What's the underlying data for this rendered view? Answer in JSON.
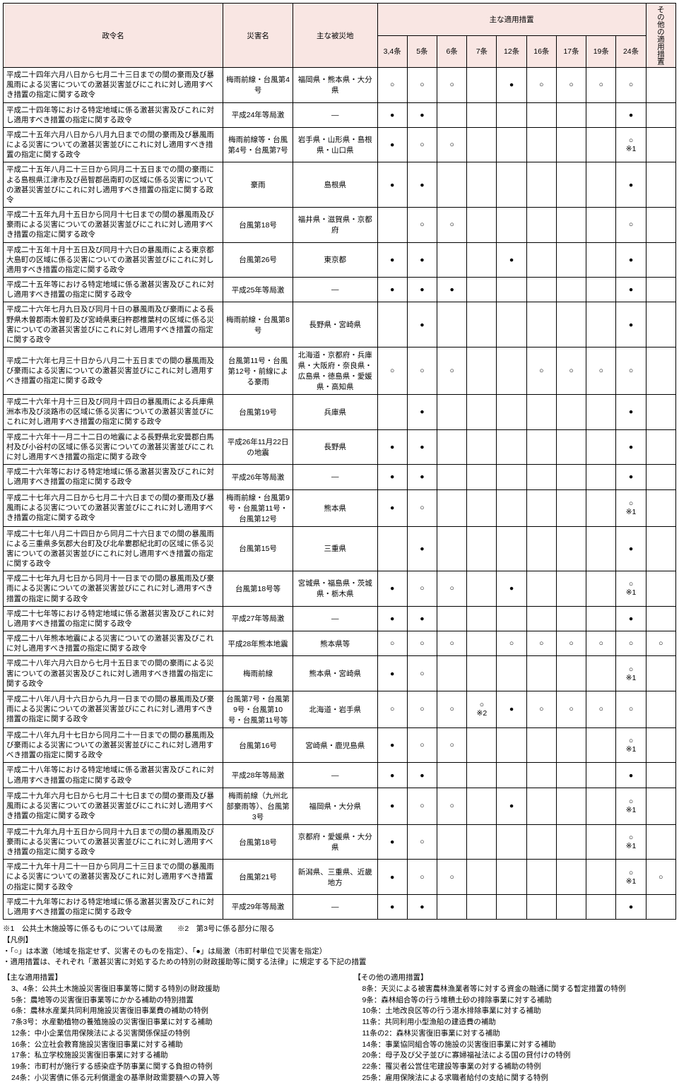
{
  "headers": {
    "col0": "政令名",
    "col1": "災害名",
    "col2": "主な被災地",
    "group": "主な適用措置",
    "other": "その他の適用措置",
    "articles": [
      "3,4条",
      "5条",
      "6条",
      "7条",
      "12条",
      "16条",
      "17条",
      "19条",
      "24条"
    ]
  },
  "rows": [
    {
      "name": "平成二十四年六月八日から七月二十三日までの間の豪雨及び暴風雨による災害についての激甚災害並びにこれに対し適用すべき措置の指定に関する政令",
      "dis": "梅雨前線・台風第4号",
      "area": "福岡県・熊本県・大分県",
      "m": [
        "○",
        "○",
        "○",
        "",
        "●",
        "○",
        "○",
        "○",
        "○"
      ],
      "o": ""
    },
    {
      "name": "平成二十四年等における特定地域に係る激甚災害及びこれに対し適用すべき措置の指定に関する政令",
      "dis": "平成24年等局激",
      "area": "―",
      "m": [
        "●",
        "●",
        "",
        "",
        "",
        "",
        "",
        "",
        "●"
      ],
      "o": ""
    },
    {
      "name": "平成二十五年六月八日から八月九日までの間の豪雨及び暴風雨による災害についての激甚災害並びにこれに対し適用すべき措置の指定に関する政令",
      "dis": "梅雨前線等・台風第4号・台風第7号",
      "area": "岩手県・山形県・島根県・山口県",
      "m": [
        "●",
        "○",
        "○",
        "",
        "",
        "",
        "",
        "",
        "○※1"
      ],
      "o": ""
    },
    {
      "name": "平成二十五年八月二十三日から同月二十五日までの間の豪雨による島根県江津市及び邑智郡邑南町の区域に係る災害についての激甚災害並びにこれに対し適用すべき措置の指定に関する政令",
      "dis": "豪雨",
      "area": "島根県",
      "m": [
        "●",
        "●",
        "",
        "",
        "",
        "",
        "",
        "",
        "●"
      ],
      "o": ""
    },
    {
      "name": "平成二十五年九月十五日から同月十七日までの間の暴風雨及び豪雨による災害についての激甚災害並びにこれに対し適用すべき措置の指定に関する政令",
      "dis": "台風第18号",
      "area": "福井県・滋賀県・京都府",
      "m": [
        "",
        "○",
        "○",
        "",
        "",
        "",
        "",
        "",
        "○"
      ],
      "o": ""
    },
    {
      "name": "平成二十五年十月十五日及び同月十六日の暴風雨による東京都大島町の区域に係る災害についての激甚災害並びにこれに対し適用すべき措置の指定に関する政令",
      "dis": "台風第26号",
      "area": "東京都",
      "m": [
        "●",
        "●",
        "",
        "",
        "●",
        "",
        "",
        "",
        "●"
      ],
      "o": ""
    },
    {
      "name": "平成二十五年等における特定地域に係る激甚災害及びこれに対し適用すべき措置の指定に関する政令",
      "dis": "平成25年等局激",
      "area": "―",
      "m": [
        "●",
        "●",
        "●",
        "",
        "",
        "",
        "",
        "",
        "●"
      ],
      "o": ""
    },
    {
      "name": "平成二十六年七月九日及び同月十日の暴風雨及び豪雨による長野県木曽郡南木曽町及び宮崎県東臼杵郡椎葉村の区域に係る災害についての激甚災害並びにこれに対し適用すべき措置の指定に関する政令",
      "dis": "梅雨前線・台風第8号",
      "area": "長野県・宮崎県",
      "m": [
        "",
        "●",
        "",
        "",
        "",
        "",
        "",
        "",
        "●"
      ],
      "o": ""
    },
    {
      "name": "平成二十六年七月三十日から八月二十五日までの間の暴風雨及び豪雨による災害についての激甚災害並びにこれに対し適用すべき措置の指定に関する政令",
      "dis": "台風第11号・台風第12号・前線による豪雨",
      "area": "北海道・京都府・兵庫県・大阪府・奈良県・広島県・徳島県・愛媛県・高知県",
      "m": [
        "○",
        "○",
        "○",
        "",
        "",
        "○",
        "○",
        "○",
        "○"
      ],
      "o": ""
    },
    {
      "name": "平成二十六年十月十三日及び同月十四日の暴風雨による兵庫県洲本市及び淡路市の区域に係る災害についての激甚災害並びにこれに対し適用すべき措置の指定に関する政令",
      "dis": "台風第19号",
      "area": "兵庫県",
      "m": [
        "",
        "●",
        "",
        "",
        "",
        "",
        "",
        "",
        "●"
      ],
      "o": ""
    },
    {
      "name": "平成二十六年十一月二十二日の地震による長野県北安曇郡白馬村及び小谷村の区域に係る災害についての激甚災害並びにこれに対し適用すべき措置の指定に関する政令",
      "dis": "平成26年11月22日の地震",
      "area": "長野県",
      "m": [
        "●",
        "●",
        "",
        "",
        "",
        "",
        "",
        "",
        "●"
      ],
      "o": ""
    },
    {
      "name": "平成二十六年等における特定地域に係る激甚災害及びこれに対し適用すべき措置の指定に関する政令",
      "dis": "平成26年等局激",
      "area": "―",
      "m": [
        "●",
        "●",
        "",
        "",
        "",
        "",
        "",
        "",
        "●"
      ],
      "o": ""
    },
    {
      "name": "平成二十七年六月二日から七月二十六日までの間の豪雨及び暴風雨による災害についての激甚災害並びにこれに対し適用すべき措置の指定に関する政令",
      "dis": "梅雨前線・台風第9号・台風第11号・台風第12号",
      "area": "熊本県",
      "m": [
        "●",
        "○",
        "",
        "",
        "",
        "",
        "",
        "",
        "○※1"
      ],
      "o": ""
    },
    {
      "name": "平成二十七年八月二十四日から同月二十六日までの間の暴風雨による三重県多気郡大台町及び北牟婁郡紀北町の区域に係る災害についての激甚災害並びにこれに対し適用すべき措置の指定に関する政令",
      "dis": "台風第15号",
      "area": "三重県",
      "m": [
        "",
        "●",
        "",
        "",
        "",
        "",
        "",
        "",
        "●"
      ],
      "o": ""
    },
    {
      "name": "平成二十七年九月七日から同月十一日までの間の暴風雨及び豪雨による災害についての激甚災害並びにこれに対し適用すべき措置の指定に関する政令",
      "dis": "台風第18号等",
      "area": "宮城県・福島県・茨城県・栃木県",
      "m": [
        "●",
        "○",
        "○",
        "",
        "●",
        "",
        "",
        "",
        "○※1"
      ],
      "o": ""
    },
    {
      "name": "平成二十七年等における特定地域に係る激甚災害及びこれに対し適用すべき措置の指定に関する政令",
      "dis": "平成27年等局激",
      "area": "―",
      "m": [
        "●",
        "●",
        "",
        "",
        "",
        "",
        "",
        "",
        "●"
      ],
      "o": ""
    },
    {
      "name": "平成二十八年熊本地震による災害についての激甚災害及びこれに対し適用すべき措置の指定に関する政令",
      "dis": "平成28年熊本地震",
      "area": "熊本県等",
      "m": [
        "○",
        "○",
        "○",
        "",
        "○",
        "○",
        "○",
        "○",
        "○"
      ],
      "o": "○"
    },
    {
      "name": "平成二十八年六月六日から七月十五日までの間の豪雨による災害についての激甚災害及びこれに対し適用すべき措置の指定に関する政令",
      "dis": "梅雨前線",
      "area": "熊本県・宮崎県",
      "m": [
        "●",
        "○",
        "",
        "",
        "",
        "",
        "",
        "",
        "○※1"
      ],
      "o": ""
    },
    {
      "name": "平成二十八年八月十六日から九月一日までの間の暴風雨及び豪雨による災害についての激甚災害並びにこれに対し適用すべき措置の指定に関する政令",
      "dis": "台風第7号・台風第9号・台風第10号・台風第11号等",
      "area": "北海道・岩手県",
      "m": [
        "○",
        "○",
        "○",
        "○※2",
        "●",
        "○",
        "○",
        "○",
        "○"
      ],
      "o": ""
    },
    {
      "name": "平成二十八年九月十七日から同月二十一日までの間の暴風雨及び豪雨による災害についての激甚災害並びにこれに対し適用すべき措置の指定に関する政令",
      "dis": "台風第16号",
      "area": "宮崎県・鹿児島県",
      "m": [
        "●",
        "○",
        "○",
        "",
        "",
        "",
        "",
        "",
        "○※1"
      ],
      "o": ""
    },
    {
      "name": "平成二十八年等における特定地域に係る激甚災害及びこれに対し適用すべき措置の指定に関する政令",
      "dis": "平成28年等局激",
      "area": "―",
      "m": [
        "●",
        "●",
        "",
        "",
        "",
        "",
        "",
        "",
        "●"
      ],
      "o": ""
    },
    {
      "name": "平成二十九年六月七日から七月二十七日までの間の豪雨及び暴風雨による災害についての激甚災害並びにこれに対し適用すべき措置の指定に関する政令",
      "dis": "梅雨前線（九州北部豪雨等）、台風第3号",
      "area": "福岡県・大分県",
      "m": [
        "●",
        "○",
        "○",
        "",
        "●",
        "",
        "",
        "",
        "○※1"
      ],
      "o": ""
    },
    {
      "name": "平成二十九年九月十五日から同月十九日までの間の暴風雨及び豪雨による災害についての激甚災害並びにこれに対し適用すべき措置の指定に関する政令",
      "dis": "台風第18号",
      "area": "京都府・愛媛県・大分県",
      "m": [
        "●",
        "○",
        "",
        "",
        "",
        "",
        "",
        "",
        "○※1"
      ],
      "o": ""
    },
    {
      "name": "平成二十九年十月二十一日から同月二十三日までの間の暴風雨による災害についての激甚災害及びこれに対し適用すべき措置の指定に関する政令",
      "dis": "台風第21号",
      "area": "新潟県、三重県、近畿地方",
      "m": [
        "●",
        "○",
        "○",
        "",
        "",
        "",
        "",
        "",
        "○※1"
      ],
      "o": "○"
    },
    {
      "name": "平成二十九年等における特定地域に係る激甚災害及びこれに対し適用すべき措置の指定に関する政令",
      "dis": "平成29年等局激",
      "area": "―",
      "m": [
        "●",
        "●",
        "",
        "",
        "",
        "",
        "",
        "",
        "●"
      ],
      "o": ""
    }
  ],
  "footnotes": {
    "f1": "※1　公共土木施設等に係るものについては局激　　※2　第3号に係る部分に限る",
    "legend_hdr": "【凡例】",
    "legend1": "・「○」は本激（地域を指定せず、災害そのものを指定）、「●」は局激（市町村単位で災害を指定）",
    "legend2": "・適用措置は、それぞれ「激甚災害に対処するための特別の財政援助等に関する法律」に規定する下記の措置"
  },
  "left_block": {
    "hdr": "【主な適用措置】",
    "items": [
      "3、4条：公共土木施設災害復旧事業等に関する特別の財政援助",
      "5条：農地等の災害復旧事業等にかかる補助の特別措置",
      "6条：農林水産業共同利用施設災害復旧事業費の補助の特例",
      "7条3号：水産動植物の養殖施設の災害復旧事業に対する補助",
      "12条：中小企業信用保険法による災害関係保証の特例",
      "16条：公立社会教育施設災害復旧事業に対する補助",
      "17条：私立学校施設災害復旧事業に対する補助",
      "19条：市町村が施行する感染症予防事業に関する負担の特例",
      "24条：小災害債に係る元利償還金の基準財政需要額への算入等"
    ]
  },
  "right_block": {
    "hdr": "【その他の適用措置】",
    "items": [
      "8条：天災による被害農林漁業者等に対する資金の融通に関する暫定措置の特例",
      "9条：森林組合等の行う堆積土砂の排除事業に対する補助",
      "10条：土地改良区等の行う湛水排除事業に対する補助",
      "11条：共同利用小型漁船の建造費の補助",
      "11条の2：森林災害復旧事業に対する補助",
      "14条：事業協同組合等の施設の災害復旧事業に対する補助",
      "20条：母子及び父子並びに寡婦福祉法による国の貸付けの特例",
      "22条：罹災者公営住宅建設等事業の対する補助の特例",
      "25条：雇用保険法による求職者給付の支給に関する特例"
    ]
  }
}
